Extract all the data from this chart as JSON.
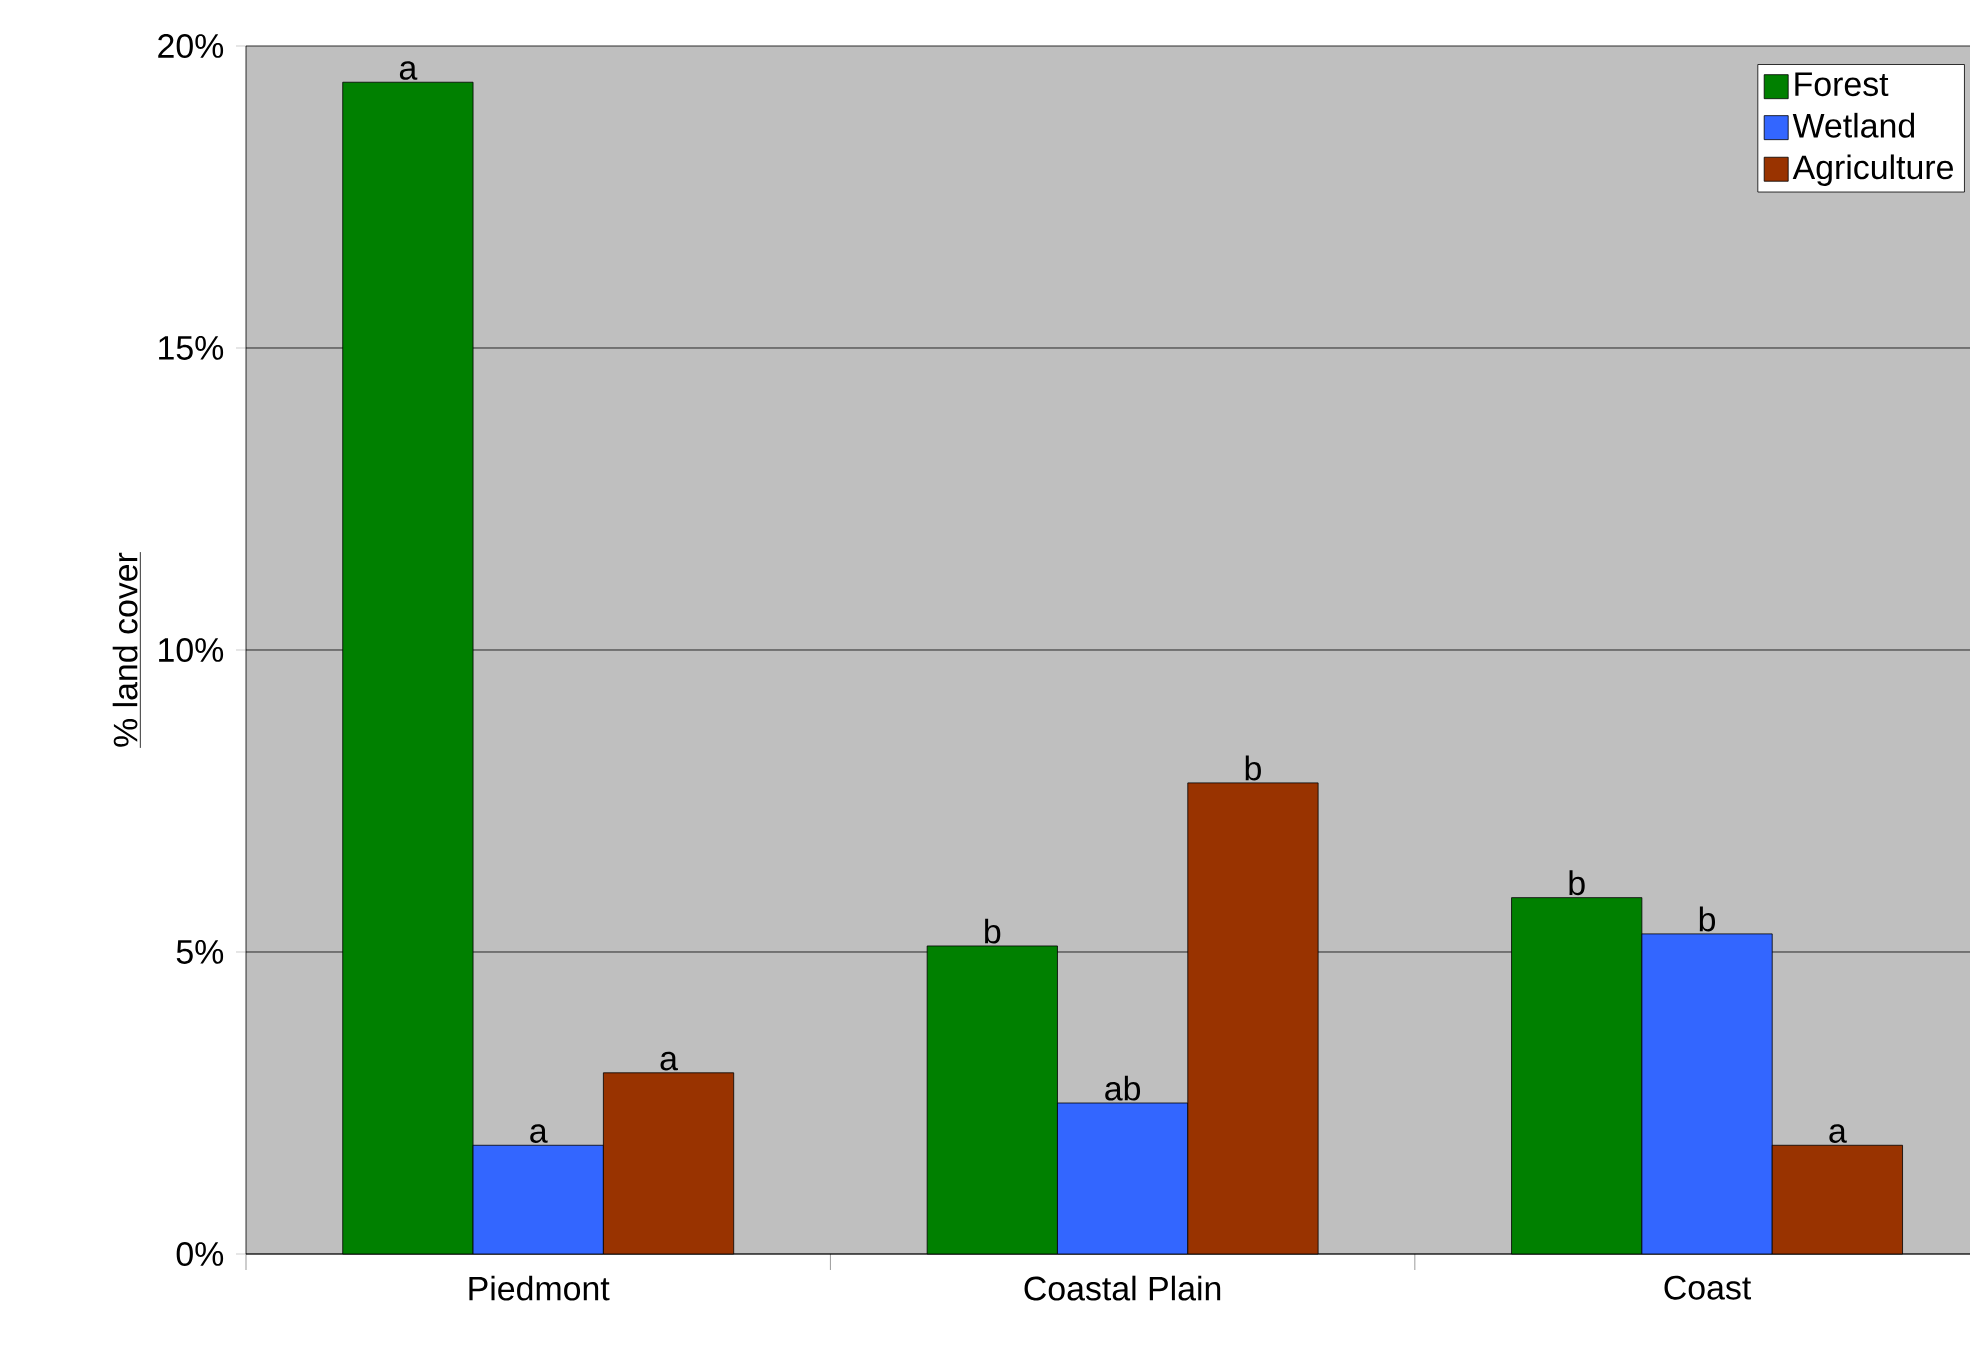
{
  "chart_data": {
    "type": "bar",
    "ylabel": "% land cover",
    "categories": [
      "Piedmont",
      "Coastal Plain",
      "Coast"
    ],
    "series": [
      {
        "name": "Forest",
        "color": "#008000",
        "values": [
          19.4,
          5.1,
          5.9
        ],
        "value_labels": [
          "a",
          "b",
          "b"
        ]
      },
      {
        "name": "Wetland",
        "color": "#3366ff",
        "values": [
          1.8,
          2.5,
          5.3
        ],
        "value_labels": [
          "a",
          "ab",
          "b"
        ]
      },
      {
        "name": "Agriculture",
        "color": "#993300",
        "values": [
          3.0,
          7.8,
          1.8
        ],
        "value_labels": [
          "a",
          "b",
          "a"
        ]
      }
    ],
    "ylim": [
      0,
      20
    ],
    "yticks": [
      {
        "value": 0,
        "label": "0%"
      },
      {
        "value": 5,
        "label": "5%"
      },
      {
        "value": 10,
        "label": "10%"
      },
      {
        "value": 15,
        "label": "15%"
      },
      {
        "value": 20,
        "label": "20%"
      }
    ],
    "grid": "y",
    "legend": "top right"
  }
}
